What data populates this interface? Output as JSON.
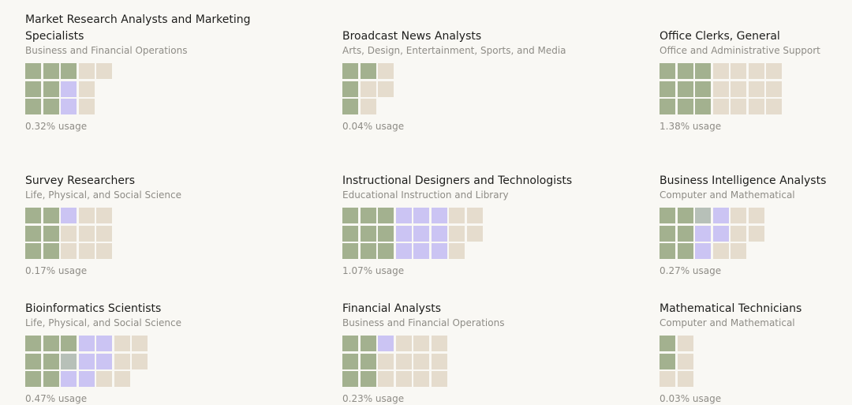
{
  "chart_data": {
    "type": "waffle",
    "colors": {
      "green": "#a3b18f",
      "purple": "#cbc4f3",
      "slate": "#b7c0b8",
      "beige": "#e5dccd"
    },
    "items": [
      {
        "title_lines": [
          "Market Research Analysts and Marketing",
          "Specialists"
        ],
        "category": "Business and Financial Operations",
        "usage": "0.32% usage",
        "columns": [
          [
            "green",
            "green",
            "green"
          ],
          [
            "green",
            "green",
            "green"
          ],
          [
            "green",
            "purple",
            "purple"
          ],
          [
            "beige",
            "beige",
            "beige"
          ],
          [
            "beige"
          ]
        ]
      },
      {
        "title_lines": [
          "Broadcast News Analysts"
        ],
        "category": "Arts, Design, Entertainment, Sports, and Media",
        "usage": "0.04% usage",
        "columns": [
          [
            "green",
            "green",
            "green"
          ],
          [
            "green",
            "beige",
            "beige"
          ],
          [
            "beige",
            "beige"
          ]
        ]
      },
      {
        "title_lines": [
          "Office Clerks, General"
        ],
        "category": "Office and Administrative Support",
        "usage": "1.38% usage",
        "columns": [
          [
            "green",
            "green",
            "green"
          ],
          [
            "green",
            "green",
            "green"
          ],
          [
            "green",
            "green",
            "green"
          ],
          [
            "beige",
            "beige",
            "beige"
          ],
          [
            "beige",
            "beige",
            "beige"
          ],
          [
            "beige",
            "beige",
            "beige"
          ],
          [
            "beige",
            "beige",
            "beige"
          ]
        ]
      },
      {
        "title_lines": [
          "Survey Researchers"
        ],
        "category": "Life, Physical, and Social Science",
        "usage": "0.17% usage",
        "columns": [
          [
            "green",
            "green",
            "green"
          ],
          [
            "green",
            "green",
            "green"
          ],
          [
            "purple",
            "beige",
            "beige"
          ],
          [
            "beige",
            "beige",
            "beige"
          ],
          [
            "beige",
            "beige",
            "beige"
          ]
        ]
      },
      {
        "title_lines": [
          "Instructional Designers and Technologists"
        ],
        "category": "Educational Instruction and Library",
        "usage": "1.07% usage",
        "columns": [
          [
            "green",
            "green",
            "green"
          ],
          [
            "green",
            "green",
            "green"
          ],
          [
            "green",
            "green",
            "green"
          ],
          [
            "purple",
            "purple",
            "purple"
          ],
          [
            "purple",
            "purple",
            "purple"
          ],
          [
            "purple",
            "purple",
            "purple"
          ],
          [
            "beige",
            "beige",
            "beige"
          ],
          [
            "beige",
            "beige"
          ]
        ]
      },
      {
        "title_lines": [
          "Business Intelligence Analysts"
        ],
        "category": "Computer and Mathematical",
        "usage": "0.27% usage",
        "columns": [
          [
            "green",
            "green",
            "green"
          ],
          [
            "green",
            "green",
            "green"
          ],
          [
            "slate",
            "purple",
            "purple"
          ],
          [
            "purple",
            "purple",
            "beige"
          ],
          [
            "beige",
            "beige",
            "beige"
          ],
          [
            "beige",
            "beige"
          ]
        ]
      },
      {
        "title_lines": [
          "Bioinformatics Scientists"
        ],
        "category": "Life, Physical, and Social Science",
        "usage": "0.47% usage",
        "columns": [
          [
            "green",
            "green",
            "green"
          ],
          [
            "green",
            "green",
            "green"
          ],
          [
            "green",
            "slate",
            "purple"
          ],
          [
            "purple",
            "purple",
            "purple"
          ],
          [
            "purple",
            "purple",
            "beige"
          ],
          [
            "beige",
            "beige",
            "beige"
          ],
          [
            "beige",
            "beige"
          ]
        ]
      },
      {
        "title_lines": [
          "Financial Analysts"
        ],
        "category": "Business and Financial Operations",
        "usage": "0.23% usage",
        "columns": [
          [
            "green",
            "green",
            "green"
          ],
          [
            "green",
            "green",
            "green"
          ],
          [
            "purple",
            "beige",
            "beige"
          ],
          [
            "beige",
            "beige",
            "beige"
          ],
          [
            "beige",
            "beige",
            "beige"
          ],
          [
            "beige",
            "beige",
            "beige"
          ]
        ]
      },
      {
        "title_lines": [
          "Mathematical Technicians"
        ],
        "category": "Computer and Mathematical",
        "usage": "0.03% usage",
        "columns": [
          [
            "green",
            "green",
            "beige"
          ],
          [
            "beige",
            "beige",
            "beige"
          ]
        ]
      }
    ]
  }
}
